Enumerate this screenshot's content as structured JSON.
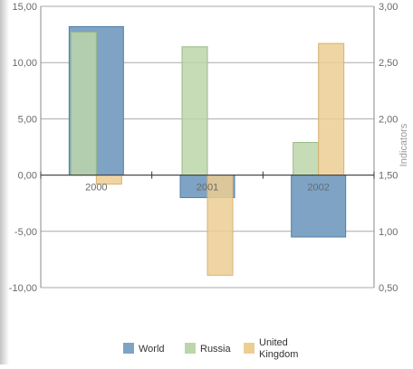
{
  "chart_data": {
    "type": "bar",
    "categories": [
      "2000",
      "2001",
      "2002"
    ],
    "primary_axis": {
      "range": [
        -10,
        15
      ],
      "ticks": [
        "-10,00",
        "-5,00",
        "0,00",
        "5,00",
        "10,00",
        "15,00"
      ]
    },
    "secondary_axis": {
      "title": "Indicators",
      "range": [
        0.5,
        3.0
      ],
      "ticks": [
        "0,50",
        "1,00",
        "1,50",
        "2,00",
        "2,50",
        "3,00"
      ]
    },
    "grid": true,
    "legend_position": "bottom",
    "primary_series": [
      {
        "name": "World",
        "color": "#7ea3c4",
        "border": "#4f7faa",
        "values": [
          13.2,
          -2.0,
          -5.5
        ]
      }
    ],
    "secondary_series": [
      {
        "name": "Russia",
        "color": "#bcd6aa",
        "border": "#98bb84",
        "values": [
          2.77,
          2.64,
          1.79
        ]
      },
      {
        "name": "United Kingdom",
        "color": "#ecce93",
        "border": "#d8b270",
        "values": [
          1.42,
          0.61,
          2.67
        ]
      }
    ],
    "legend": [
      {
        "label": "World",
        "color": "#7ea3c4"
      },
      {
        "label": "Russia",
        "color": "#bcd6aa"
      },
      {
        "label": "United Kingdom",
        "color": "#ecce93"
      }
    ]
  }
}
